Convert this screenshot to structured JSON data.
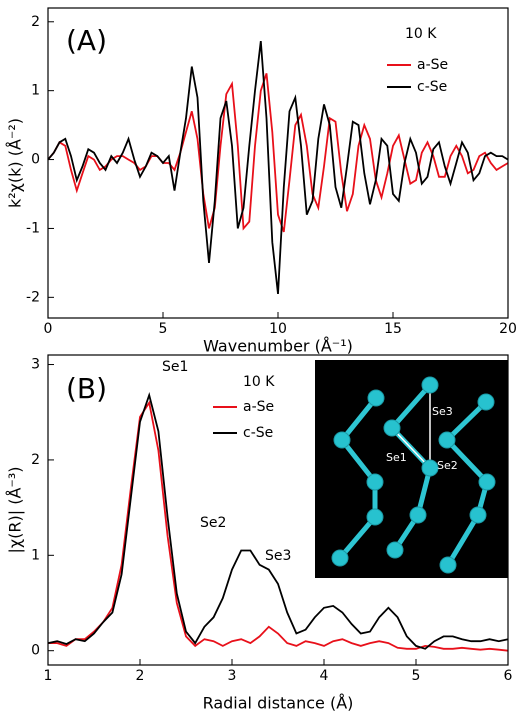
{
  "chart_data": [
    {
      "type": "line",
      "title": "(A)",
      "annotations": [
        "10 K"
      ],
      "x_label": "Wavenumber (Å⁻¹)",
      "y_label": "k²χ(k) (Å⁻²)",
      "xlim": [
        0,
        20
      ],
      "ylim": [
        -2.3,
        2.2
      ],
      "xticks": [
        0,
        5,
        10,
        15,
        20
      ],
      "yticks": [
        -2,
        -1,
        0,
        1,
        2
      ],
      "x": [
        0,
        0.25,
        0.5,
        0.75,
        1,
        1.25,
        1.5,
        1.75,
        2,
        2.25,
        2.5,
        2.75,
        3,
        3.25,
        3.5,
        3.75,
        4,
        4.25,
        4.5,
        4.75,
        5,
        5.25,
        5.5,
        5.75,
        6,
        6.25,
        6.5,
        6.75,
        7,
        7.25,
        7.5,
        7.75,
        8,
        8.25,
        8.5,
        8.75,
        9,
        9.25,
        9.5,
        9.75,
        10,
        10.25,
        10.5,
        10.75,
        11,
        11.25,
        11.5,
        11.75,
        12,
        12.25,
        12.5,
        12.75,
        13,
        13.25,
        13.5,
        13.75,
        14,
        14.25,
        14.5,
        14.75,
        15,
        15.25,
        15.5,
        15.75,
        16,
        16.25,
        16.5,
        16.75,
        17,
        17.25,
        17.5,
        17.75,
        18,
        18.25,
        18.5,
        18.75,
        19,
        19.25,
        19.5,
        19.75,
        20
      ],
      "series": [
        {
          "name": "a-Se",
          "color": "#e8101a",
          "values": [
            0,
            0.1,
            0.25,
            0.2,
            -0.15,
            -0.45,
            -0.2,
            0.05,
            0,
            -0.15,
            -0.1,
            0,
            0.05,
            0.05,
            0,
            -0.05,
            -0.15,
            -0.1,
            0.05,
            0.05,
            -0.05,
            -0.05,
            -0.15,
            0.1,
            0.4,
            0.7,
            0.3,
            -0.5,
            -1,
            -0.7,
            0.2,
            0.95,
            1.1,
            0.2,
            -1,
            -0.9,
            0.2,
            1,
            1.25,
            0.4,
            -0.8,
            -1.05,
            -0.3,
            0.5,
            0.65,
            0.2,
            -0.5,
            -0.7,
            -0.1,
            0.6,
            0.55,
            -0.2,
            -0.75,
            -0.5,
            0.2,
            0.5,
            0.3,
            -0.3,
            -0.55,
            -0.2,
            0.2,
            0.35,
            0,
            -0.35,
            -0.3,
            0.1,
            0.25,
            0.05,
            -0.25,
            -0.25,
            0.05,
            0.2,
            0.05,
            -0.2,
            -0.15,
            0.05,
            0.1,
            -0.05,
            -0.15,
            -0.1,
            -0.05
          ]
        },
        {
          "name": "c-Se",
          "color": "#000000",
          "values": [
            0,
            0.1,
            0.25,
            0.3,
            0.05,
            -0.3,
            -0.1,
            0.15,
            0.1,
            -0.05,
            -0.15,
            0.05,
            -0.05,
            0.1,
            0.3,
            0,
            -0.25,
            -0.1,
            0.1,
            0.05,
            -0.05,
            0.05,
            -0.45,
            0.1,
            0.6,
            1.35,
            0.9,
            -0.6,
            -1.5,
            -0.6,
            0.6,
            0.85,
            0.2,
            -1,
            -0.7,
            0.2,
            1,
            1.72,
            0.6,
            -1.2,
            -1.95,
            -0.4,
            0.7,
            0.9,
            0.2,
            -0.8,
            -0.6,
            0.3,
            0.8,
            0.5,
            -0.4,
            -0.7,
            -0.1,
            0.55,
            0.5,
            -0.2,
            -0.65,
            -0.3,
            0.3,
            0.2,
            -0.5,
            -0.6,
            -0.05,
            0.3,
            0.1,
            -0.35,
            -0.25,
            0.15,
            0.25,
            -0.1,
            -0.35,
            -0.05,
            0.25,
            0.1,
            -0.3,
            -0.2,
            0.05,
            0.1,
            0.05,
            0.05,
            0
          ]
        }
      ]
    },
    {
      "type": "line",
      "title": "(B)",
      "annotations": [
        "10 K",
        "Se1",
        "Se2",
        "Se3"
      ],
      "inset_labels": [
        "Se3",
        "Se1",
        "Se2"
      ],
      "x_label": "Radial distance (Å)",
      "y_label": "|χ(R)| (Å⁻³)",
      "xlim": [
        1,
        6
      ],
      "ylim": [
        -0.15,
        3.1
      ],
      "xticks": [
        1,
        2,
        3,
        4,
        5,
        6
      ],
      "yticks": [
        0,
        1,
        2,
        3
      ],
      "x": [
        1,
        1.1,
        1.2,
        1.3,
        1.4,
        1.5,
        1.6,
        1.7,
        1.8,
        1.9,
        2,
        2.1,
        2.2,
        2.3,
        2.4,
        2.5,
        2.6,
        2.7,
        2.8,
        2.9,
        3,
        3.1,
        3.2,
        3.3,
        3.4,
        3.5,
        3.6,
        3.7,
        3.8,
        3.9,
        4,
        4.1,
        4.2,
        4.3,
        4.4,
        4.5,
        4.6,
        4.7,
        4.8,
        4.9,
        5,
        5.1,
        5.2,
        5.3,
        5.4,
        5.5,
        5.6,
        5.7,
        5.8,
        5.9,
        6
      ],
      "series": [
        {
          "name": "a-Se",
          "color": "#e8101a",
          "values": [
            0.08,
            0.08,
            0.05,
            0.12,
            0.12,
            0.2,
            0.3,
            0.45,
            0.9,
            1.7,
            2.45,
            2.6,
            2.1,
            1.2,
            0.5,
            0.15,
            0.05,
            0.12,
            0.1,
            0.05,
            0.1,
            0.12,
            0.08,
            0.15,
            0.25,
            0.18,
            0.08,
            0.05,
            0.1,
            0.08,
            0.05,
            0.1,
            0.12,
            0.08,
            0.05,
            0.08,
            0.1,
            0.08,
            0.03,
            0.02,
            0.02,
            0.05,
            0.04,
            0.02,
            0.02,
            0.03,
            0.02,
            0.01,
            0.02,
            0.01,
            0
          ]
        },
        {
          "name": "c-Se",
          "color": "#000000",
          "values": [
            0.08,
            0.1,
            0.07,
            0.12,
            0.1,
            0.18,
            0.3,
            0.4,
            0.8,
            1.6,
            2.4,
            2.68,
            2.3,
            1.4,
            0.6,
            0.2,
            0.08,
            0.25,
            0.35,
            0.55,
            0.85,
            1.05,
            1.05,
            0.9,
            0.85,
            0.7,
            0.4,
            0.18,
            0.22,
            0.35,
            0.45,
            0.47,
            0.4,
            0.28,
            0.18,
            0.2,
            0.35,
            0.45,
            0.35,
            0.15,
            0.05,
            0.02,
            0.1,
            0.15,
            0.15,
            0.12,
            0.1,
            0.1,
            0.12,
            0.1,
            0.12
          ]
        }
      ]
    }
  ]
}
